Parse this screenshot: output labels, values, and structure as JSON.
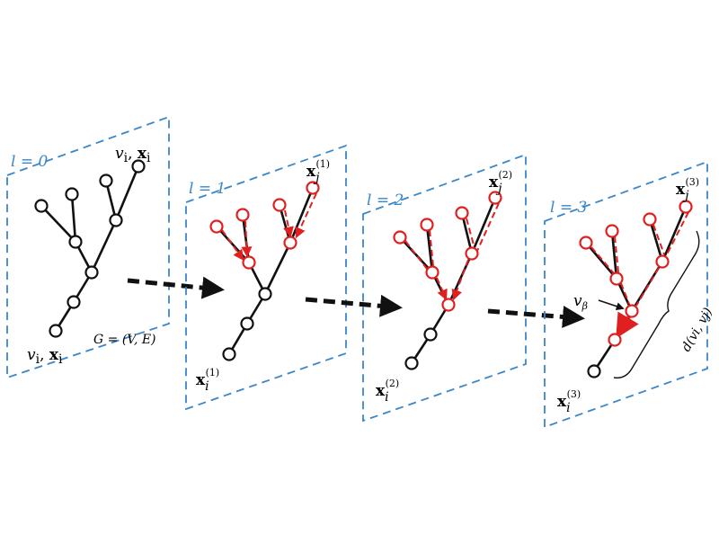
{
  "colors": {
    "plane_border": "#3a86c8",
    "tree_black": "#111111",
    "message_red": "#e02020",
    "arrow": "#111111",
    "background": "#ffffff"
  },
  "panels": [
    {
      "level_label": "l = 0",
      "graph_label": "G = (V, E)",
      "top_label": {
        "var": "v",
        "sub": "i",
        "sep": ", ",
        "bold": "x",
        "bold_sub": "i"
      },
      "bottom_label": {
        "var": "v",
        "sub": "i",
        "sep": ", ",
        "bold": "x",
        "bold_sub": "i"
      }
    },
    {
      "level_label": "l = 1",
      "top_label": {
        "bold": "x",
        "sub": "j",
        "sup": "(1)"
      },
      "bottom_label": {
        "bold": "x",
        "sub": "i",
        "sup": "(1)"
      }
    },
    {
      "level_label": "l = 2",
      "top_label": {
        "bold": "x",
        "sub": "j",
        "sup": "(2)"
      },
      "bottom_label": {
        "bold": "x",
        "sub": "i",
        "sup": "(2)"
      }
    },
    {
      "level_label": "l = 3",
      "top_label": {
        "bold": "x",
        "sub": "j",
        "sup": "(3)"
      },
      "bottom_label": {
        "bold": "x",
        "sub": "i",
        "sup": "(3)"
      },
      "pointer_label": {
        "var": "v",
        "sub": "β"
      },
      "distance_label": "d(vi, vj)"
    }
  ]
}
